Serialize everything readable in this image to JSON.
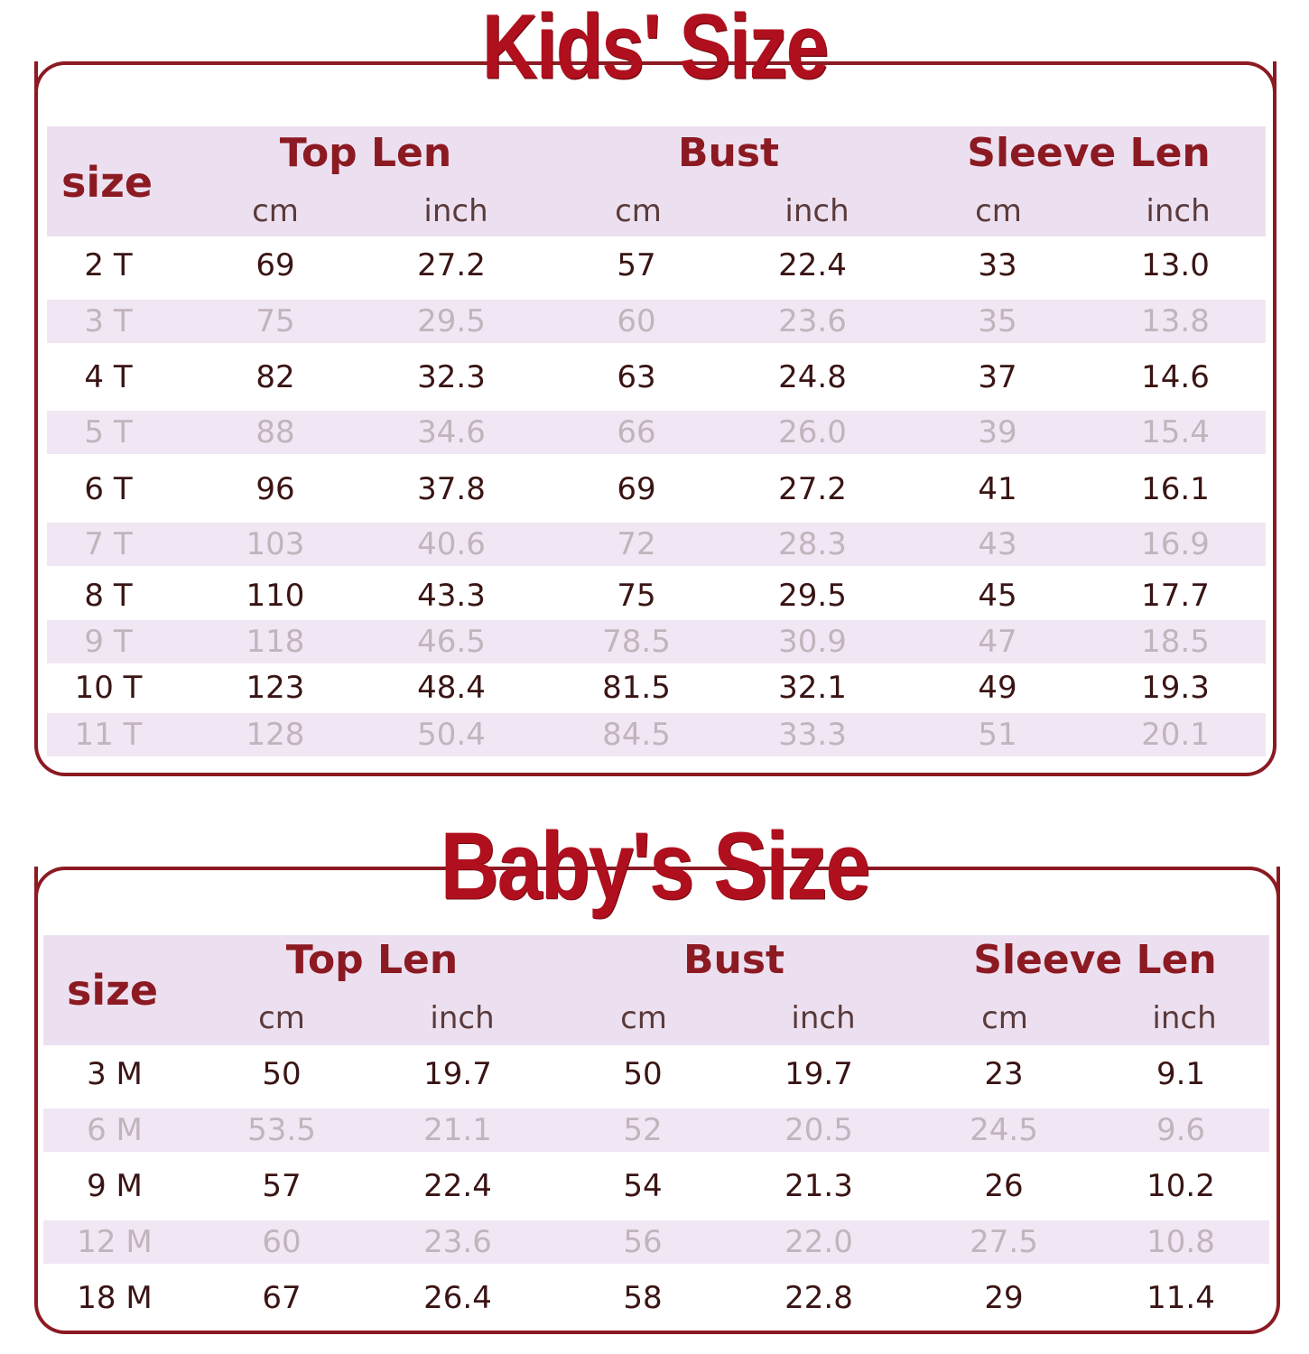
{
  "kids": {
    "title": "Kids' Size",
    "header": {
      "size": "size",
      "groups": [
        "Top Len",
        "Bust",
        "Sleeve Len"
      ],
      "units": [
        "cm",
        "inch",
        "cm",
        "inch",
        "cm",
        "inch"
      ]
    },
    "rows": [
      [
        "2 T",
        "69",
        "27.2",
        "57",
        "22.4",
        "33",
        "13.0"
      ],
      [
        "3 T",
        "75",
        "29.5",
        "60",
        "23.6",
        "35",
        "13.8"
      ],
      [
        "4 T",
        "82",
        "32.3",
        "63",
        "24.8",
        "37",
        "14.6"
      ],
      [
        "5 T",
        "88",
        "34.6",
        "66",
        "26.0",
        "39",
        "15.4"
      ],
      [
        "6 T",
        "96",
        "37.8",
        "69",
        "27.2",
        "41",
        "16.1"
      ],
      [
        "7 T",
        "103",
        "40.6",
        "72",
        "28.3",
        "43",
        "16.9"
      ],
      [
        "8 T",
        "110",
        "43.3",
        "75",
        "29.5",
        "45",
        "17.7"
      ],
      [
        "9 T",
        "118",
        "46.5",
        "78.5",
        "30.9",
        "47",
        "18.5"
      ],
      [
        "10 T",
        "123",
        "48.4",
        "81.5",
        "32.1",
        "49",
        "19.3"
      ],
      [
        "11 T",
        "128",
        "50.4",
        "84.5",
        "33.3",
        "51",
        "20.1"
      ]
    ]
  },
  "baby": {
    "title": "Baby's Size",
    "header": {
      "size": "size",
      "groups": [
        "Top Len",
        "Bust",
        "Sleeve Len"
      ],
      "units": [
        "cm",
        "inch",
        "cm",
        "inch",
        "cm",
        "inch"
      ]
    },
    "rows": [
      [
        "3 M",
        "50",
        "19.7",
        "50",
        "19.7",
        "23",
        "9.1"
      ],
      [
        "6 M",
        "53.5",
        "21.1",
        "52",
        "20.5",
        "24.5",
        "9.6"
      ],
      [
        "9 M",
        "57",
        "22.4",
        "54",
        "21.3",
        "26",
        "10.2"
      ],
      [
        "12 M",
        "60",
        "23.6",
        "56",
        "22.0",
        "27.5",
        "10.8"
      ],
      [
        "18 M",
        "67",
        "26.4",
        "58",
        "22.8",
        "29",
        "11.4"
      ]
    ]
  },
  "colors": {
    "accent": "#b0101e",
    "border": "#8c1a22",
    "header_band": "#ece0f0",
    "alt_row": "#f1e6f4"
  }
}
